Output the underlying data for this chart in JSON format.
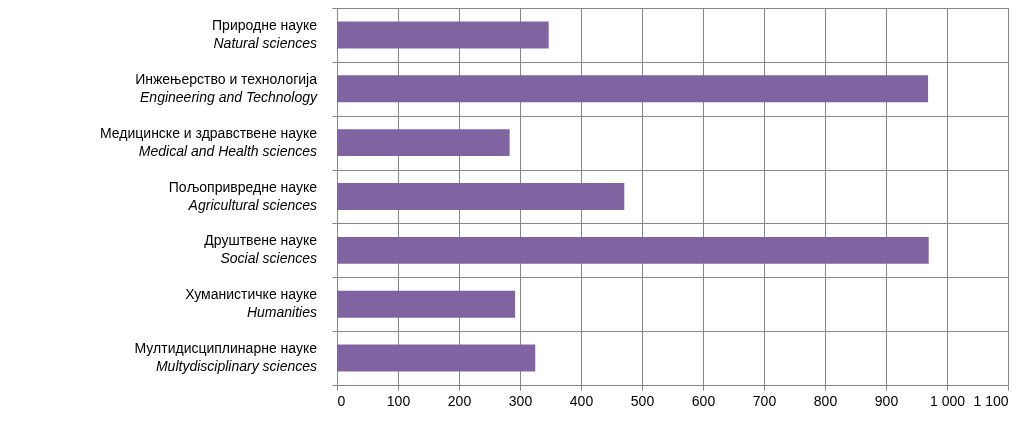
{
  "chart_data": {
    "type": "bar",
    "orientation": "horizontal",
    "categories": [
      "Природне науке\nNatural sciences",
      "Инжењерство и технологија\nEngineering and Technology",
      "Медицинске и здравствене науке\nMedical and Health sciences",
      "Пољопривредне науке\nAgricultural sciences",
      "Друштвене науке\nSocial sciences",
      "Хуманистичке науке\nHumanities",
      "Мултидисциплинарне науке\nMultydisciplinary sciences"
    ],
    "values": [
      347,
      969,
      283,
      471,
      970,
      292,
      325
    ],
    "color": "#8064a2",
    "xlim": [
      0,
      1100
    ],
    "xticks": [
      0,
      100,
      200,
      300,
      400,
      500,
      600,
      700,
      800,
      900,
      {
        "value": 1000,
        "label": "1 000"
      },
      {
        "value": 1100,
        "label": "1 100"
      }
    ],
    "grid": true
  }
}
